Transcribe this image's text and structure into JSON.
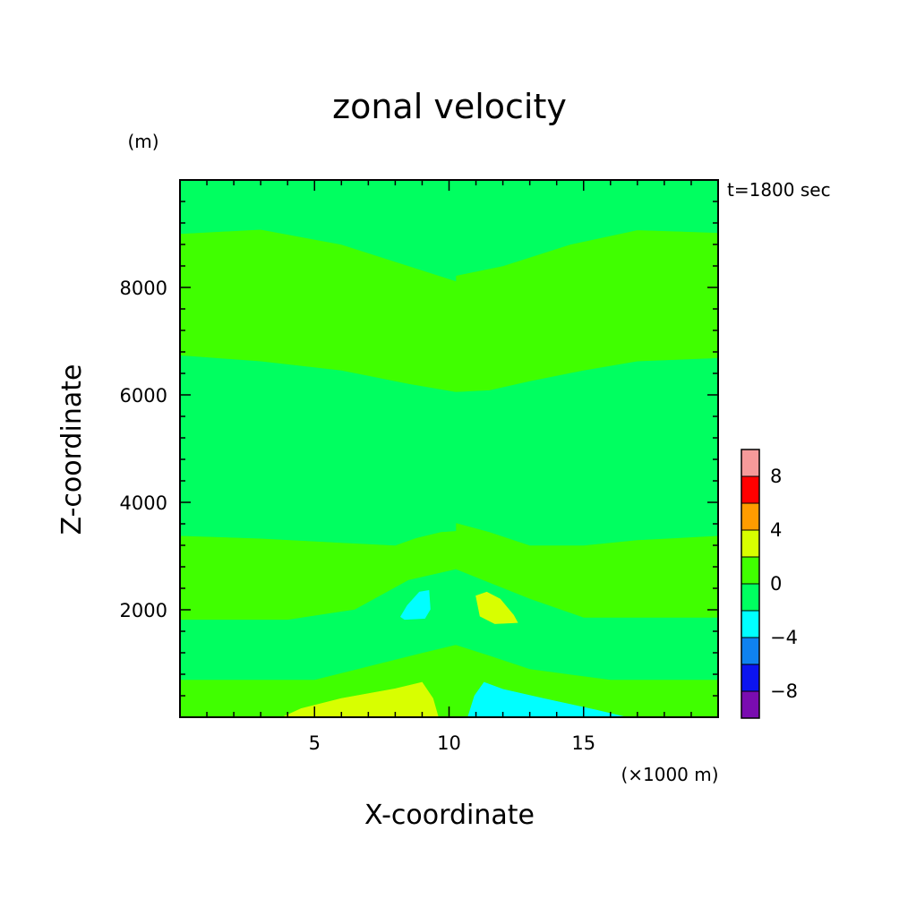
{
  "chart_data": {
    "type": "heatmap",
    "title": "zonal velocity",
    "xlabel": "X-coordinate",
    "ylabel": "Z-coordinate",
    "x_unit": "(×1000 m)",
    "y_unit": "(m)",
    "time_label": "t=1800 sec",
    "xlim": [
      0,
      20
    ],
    "ylim": [
      0,
      10000
    ],
    "x_ticks": [
      5,
      10,
      15
    ],
    "y_ticks": [
      2000,
      4000,
      6000,
      8000
    ],
    "x_minor_step": 1,
    "y_minor_step": 400,
    "colorbar": {
      "levels": [
        -10,
        -8,
        -6,
        -4,
        -2,
        0,
        2,
        4,
        6,
        8,
        10
      ],
      "tick_labels": [
        -8,
        -4,
        0,
        4,
        8
      ],
      "colors": [
        "#7a0cb0",
        "#0c14f0",
        "#0f82f0",
        "#00ffff",
        "#00ff60",
        "#40ff00",
        "#d8ff00",
        "#ff9c00",
        "#ff0000",
        "#f59a9a"
      ]
    },
    "regions": [
      {
        "level": "0 to 2",
        "poly": [
          [
            0,
            10000
          ],
          [
            20,
            10000
          ],
          [
            20,
            0
          ],
          [
            0,
            0
          ]
        ]
      },
      {
        "level": "-2 to 0",
        "poly": [
          [
            0,
            9000
          ],
          [
            3,
            9080
          ],
          [
            6,
            8800
          ],
          [
            8.5,
            8400
          ],
          [
            10.25,
            8120
          ],
          [
            10.25,
            10000
          ],
          [
            0,
            10000
          ]
        ]
      },
      {
        "level": "-2 to 0",
        "poly": [
          [
            10.25,
            10000
          ],
          [
            10.25,
            8220
          ],
          [
            12,
            8400
          ],
          [
            14.5,
            8800
          ],
          [
            17,
            9070
          ],
          [
            20,
            9020
          ],
          [
            20,
            10000
          ]
        ]
      },
      {
        "level": "-2 to 0",
        "poly": [
          [
            0,
            6730
          ],
          [
            3,
            6620
          ],
          [
            6,
            6450
          ],
          [
            8.5,
            6200
          ],
          [
            10.25,
            6050
          ],
          [
            10.25,
            5950
          ],
          [
            10.25,
            3620
          ],
          [
            11.5,
            3450
          ],
          [
            13,
            3200
          ],
          [
            15,
            3200
          ],
          [
            17,
            3300
          ],
          [
            20,
            3380
          ],
          [
            20,
            6680
          ],
          [
            17,
            6620
          ],
          [
            15,
            6450
          ],
          [
            13,
            6250
          ],
          [
            11.5,
            6080
          ],
          [
            10.25,
            6050
          ],
          [
            10.25,
            3600
          ],
          [
            9.5,
            3470
          ],
          [
            8,
            3200
          ],
          [
            6,
            3250
          ],
          [
            3,
            3330
          ],
          [
            0,
            3380
          ]
        ]
      },
      {
        "level": "-2 to 0",
        "poly": [
          [
            0,
            1810
          ],
          [
            4,
            1810
          ],
          [
            6.5,
            2000
          ],
          [
            8.5,
            2550
          ],
          [
            10.25,
            2750
          ],
          [
            11.5,
            2500
          ],
          [
            13,
            2200
          ],
          [
            15,
            1850
          ],
          [
            20,
            1850
          ],
          [
            20,
            700
          ],
          [
            16,
            700
          ],
          [
            13,
            900
          ],
          [
            11.5,
            1150
          ],
          [
            10.25,
            1350
          ],
          [
            9,
            1200
          ],
          [
            7,
            950
          ],
          [
            5,
            700
          ],
          [
            0,
            700
          ]
        ]
      },
      {
        "level": "-2 to 0",
        "poly": [
          [
            8.7,
            3330
          ],
          [
            9.7,
            3450
          ],
          [
            10.25,
            3470
          ],
          [
            10.25,
            3630
          ],
          [
            9.8,
            3600
          ],
          [
            9.2,
            3520
          ]
        ]
      },
      {
        "level": "-4 to -2",
        "poly": [
          [
            8.2,
            1870
          ],
          [
            8.45,
            2080
          ],
          [
            8.9,
            2330
          ],
          [
            9.25,
            2360
          ],
          [
            9.3,
            2010
          ],
          [
            9.1,
            1840
          ],
          [
            8.35,
            1820
          ]
        ]
      },
      {
        "level": "2 to 4",
        "poly": [
          [
            11,
            2260
          ],
          [
            11.4,
            2330
          ],
          [
            11.9,
            2200
          ],
          [
            12.4,
            1900
          ],
          [
            12.55,
            1760
          ],
          [
            11.7,
            1740
          ],
          [
            11.15,
            1880
          ]
        ]
      },
      {
        "level": "2 to 4",
        "poly": [
          [
            3.8,
            0
          ],
          [
            4.5,
            160
          ],
          [
            6,
            350
          ],
          [
            8,
            530
          ],
          [
            9,
            650
          ],
          [
            9.4,
            350
          ],
          [
            9.6,
            0
          ]
        ]
      },
      {
        "level": "-4 to -2",
        "poly": [
          [
            10.7,
            0
          ],
          [
            10.95,
            400
          ],
          [
            11.3,
            650
          ],
          [
            12,
            520
          ],
          [
            13.5,
            350
          ],
          [
            15.5,
            130
          ],
          [
            16.6,
            0
          ]
        ]
      }
    ]
  }
}
